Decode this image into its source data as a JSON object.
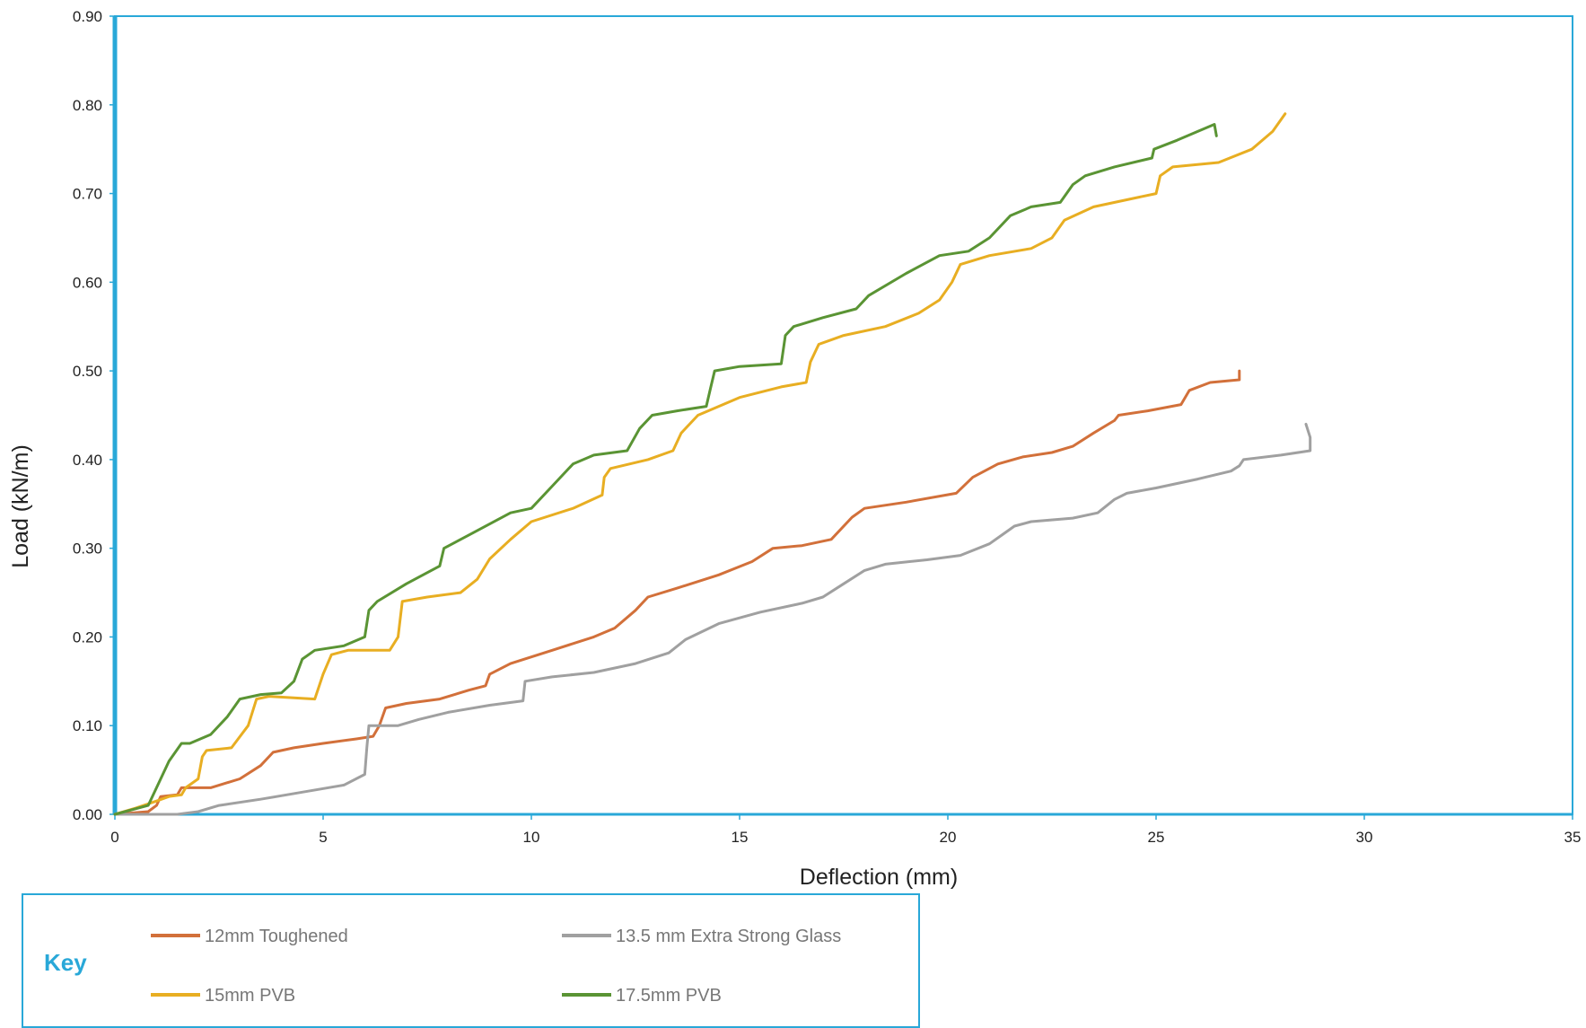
{
  "chart_data": {
    "type": "line",
    "title": "",
    "xlabel": "Deflection (mm)",
    "ylabel": "Load (kN/m)",
    "xlim": [
      0,
      35
    ],
    "ylim": [
      0,
      0.9
    ],
    "x_ticks": [
      0,
      5,
      10,
      15,
      20,
      25,
      30,
      35
    ],
    "y_ticks": [
      0.0,
      0.1,
      0.2,
      0.3,
      0.4,
      0.5,
      0.6,
      0.7,
      0.8,
      0.9
    ],
    "x_tick_labels": [
      "0",
      "5",
      "10",
      "15",
      "20",
      "25",
      "30",
      "35"
    ],
    "y_tick_labels": [
      "0.00",
      "0.10",
      "0.20",
      "0.30",
      "0.40",
      "0.50",
      "0.60",
      "0.70",
      "0.80",
      "0.90"
    ],
    "grid": false,
    "frame_color": "#29a8d8",
    "legend": {
      "title": "Key",
      "placement": "bottom-left",
      "title_color": "#29a8d8"
    },
    "series": [
      {
        "name": "12mm Toughened",
        "color": "#d2703a",
        "points": [
          [
            0,
            0
          ],
          [
            0.8,
            0.003
          ],
          [
            1.0,
            0.01
          ],
          [
            1.1,
            0.02
          ],
          [
            1.5,
            0.022
          ],
          [
            1.6,
            0.03
          ],
          [
            2.3,
            0.03
          ],
          [
            3.0,
            0.04
          ],
          [
            3.5,
            0.055
          ],
          [
            3.8,
            0.07
          ],
          [
            4.3,
            0.075
          ],
          [
            5.0,
            0.08
          ],
          [
            5.8,
            0.085
          ],
          [
            6.2,
            0.088
          ],
          [
            6.35,
            0.1
          ],
          [
            6.5,
            0.12
          ],
          [
            7.0,
            0.125
          ],
          [
            7.8,
            0.13
          ],
          [
            8.5,
            0.14
          ],
          [
            8.9,
            0.145
          ],
          [
            9.0,
            0.158
          ],
          [
            9.5,
            0.17
          ],
          [
            10.5,
            0.185
          ],
          [
            11.5,
            0.2
          ],
          [
            12.0,
            0.21
          ],
          [
            12.5,
            0.23
          ],
          [
            12.8,
            0.245
          ],
          [
            13.5,
            0.255
          ],
          [
            14.5,
            0.27
          ],
          [
            15.3,
            0.285
          ],
          [
            15.8,
            0.3
          ],
          [
            16.5,
            0.303
          ],
          [
            17.2,
            0.31
          ],
          [
            17.7,
            0.335
          ],
          [
            18.0,
            0.345
          ],
          [
            19.0,
            0.352
          ],
          [
            20.2,
            0.362
          ],
          [
            20.6,
            0.38
          ],
          [
            21.2,
            0.395
          ],
          [
            21.8,
            0.403
          ],
          [
            22.5,
            0.408
          ],
          [
            23.0,
            0.415
          ],
          [
            23.5,
            0.43
          ],
          [
            24.0,
            0.444
          ],
          [
            24.1,
            0.45
          ],
          [
            24.8,
            0.455
          ],
          [
            25.6,
            0.462
          ],
          [
            25.8,
            0.478
          ],
          [
            26.3,
            0.487
          ],
          [
            27.0,
            0.49
          ],
          [
            27.0,
            0.5
          ]
        ]
      },
      {
        "name": "13.5 mm Extra Strong Glass",
        "color": "#a0a0a0",
        "points": [
          [
            0,
            0
          ],
          [
            1.5,
            0.0
          ],
          [
            2.0,
            0.003
          ],
          [
            2.5,
            0.01
          ],
          [
            3.5,
            0.017
          ],
          [
            4.5,
            0.025
          ],
          [
            5.5,
            0.033
          ],
          [
            6.0,
            0.045
          ],
          [
            6.05,
            0.075
          ],
          [
            6.1,
            0.1
          ],
          [
            6.8,
            0.1
          ],
          [
            7.3,
            0.107
          ],
          [
            8.0,
            0.115
          ],
          [
            9.0,
            0.123
          ],
          [
            9.8,
            0.128
          ],
          [
            9.85,
            0.15
          ],
          [
            10.5,
            0.155
          ],
          [
            11.5,
            0.16
          ],
          [
            12.5,
            0.17
          ],
          [
            13.3,
            0.182
          ],
          [
            13.7,
            0.197
          ],
          [
            14.5,
            0.215
          ],
          [
            15.5,
            0.228
          ],
          [
            16.5,
            0.238
          ],
          [
            17.0,
            0.245
          ],
          [
            17.5,
            0.26
          ],
          [
            18.0,
            0.275
          ],
          [
            18.5,
            0.282
          ],
          [
            19.5,
            0.287
          ],
          [
            20.3,
            0.292
          ],
          [
            21.0,
            0.305
          ],
          [
            21.3,
            0.315
          ],
          [
            21.6,
            0.325
          ],
          [
            22.0,
            0.33
          ],
          [
            23.0,
            0.334
          ],
          [
            23.6,
            0.34
          ],
          [
            24.0,
            0.355
          ],
          [
            24.3,
            0.362
          ],
          [
            25.0,
            0.368
          ],
          [
            26.0,
            0.378
          ],
          [
            26.8,
            0.387
          ],
          [
            27.0,
            0.393
          ],
          [
            27.1,
            0.4
          ],
          [
            28.0,
            0.405
          ],
          [
            28.7,
            0.41
          ],
          [
            28.7,
            0.425
          ],
          [
            28.6,
            0.44
          ]
        ]
      },
      {
        "name": "15mm PVB",
        "color": "#e8ae22",
        "points": [
          [
            0,
            0
          ],
          [
            0.5,
            0.007
          ],
          [
            1.0,
            0.015
          ],
          [
            1.3,
            0.02
          ],
          [
            1.6,
            0.022
          ],
          [
            1.7,
            0.03
          ],
          [
            2.0,
            0.04
          ],
          [
            2.1,
            0.065
          ],
          [
            2.2,
            0.072
          ],
          [
            2.8,
            0.075
          ],
          [
            3.2,
            0.1
          ],
          [
            3.4,
            0.13
          ],
          [
            3.7,
            0.133
          ],
          [
            4.8,
            0.13
          ],
          [
            5.0,
            0.158
          ],
          [
            5.2,
            0.18
          ],
          [
            5.6,
            0.185
          ],
          [
            6.6,
            0.185
          ],
          [
            6.8,
            0.2
          ],
          [
            6.9,
            0.24
          ],
          [
            7.5,
            0.245
          ],
          [
            8.3,
            0.25
          ],
          [
            8.7,
            0.265
          ],
          [
            9.0,
            0.288
          ],
          [
            9.5,
            0.31
          ],
          [
            10.0,
            0.33
          ],
          [
            11.0,
            0.345
          ],
          [
            11.7,
            0.36
          ],
          [
            11.75,
            0.38
          ],
          [
            11.9,
            0.39
          ],
          [
            12.8,
            0.4
          ],
          [
            13.4,
            0.41
          ],
          [
            13.6,
            0.43
          ],
          [
            14.0,
            0.45
          ],
          [
            15.0,
            0.47
          ],
          [
            16.0,
            0.482
          ],
          [
            16.6,
            0.487
          ],
          [
            16.7,
            0.51
          ],
          [
            16.9,
            0.53
          ],
          [
            17.5,
            0.54
          ],
          [
            18.5,
            0.55
          ],
          [
            19.3,
            0.565
          ],
          [
            19.8,
            0.58
          ],
          [
            20.1,
            0.6
          ],
          [
            20.3,
            0.62
          ],
          [
            21.0,
            0.63
          ],
          [
            22.0,
            0.638
          ],
          [
            22.5,
            0.65
          ],
          [
            22.8,
            0.67
          ],
          [
            23.5,
            0.685
          ],
          [
            24.5,
            0.695
          ],
          [
            25.0,
            0.7
          ],
          [
            25.1,
            0.72
          ],
          [
            25.4,
            0.73
          ],
          [
            26.5,
            0.735
          ],
          [
            27.3,
            0.75
          ],
          [
            27.8,
            0.77
          ],
          [
            28.1,
            0.79
          ]
        ]
      },
      {
        "name": "17.5mm PVB",
        "color": "#5a9434",
        "points": [
          [
            0,
            0
          ],
          [
            0.8,
            0.01
          ],
          [
            1.0,
            0.03
          ],
          [
            1.3,
            0.06
          ],
          [
            1.6,
            0.08
          ],
          [
            1.8,
            0.08
          ],
          [
            2.3,
            0.09
          ],
          [
            2.7,
            0.11
          ],
          [
            3.0,
            0.13
          ],
          [
            3.5,
            0.135
          ],
          [
            4.0,
            0.137
          ],
          [
            4.3,
            0.15
          ],
          [
            4.5,
            0.175
          ],
          [
            4.8,
            0.185
          ],
          [
            5.5,
            0.19
          ],
          [
            6.0,
            0.2
          ],
          [
            6.1,
            0.23
          ],
          [
            6.3,
            0.24
          ],
          [
            7.0,
            0.26
          ],
          [
            7.8,
            0.28
          ],
          [
            7.9,
            0.3
          ],
          [
            8.5,
            0.315
          ],
          [
            9.5,
            0.34
          ],
          [
            10.0,
            0.345
          ],
          [
            10.5,
            0.37
          ],
          [
            11.0,
            0.395
          ],
          [
            11.5,
            0.405
          ],
          [
            12.3,
            0.41
          ],
          [
            12.6,
            0.435
          ],
          [
            12.9,
            0.45
          ],
          [
            13.5,
            0.455
          ],
          [
            14.2,
            0.46
          ],
          [
            14.3,
            0.48
          ],
          [
            14.4,
            0.5
          ],
          [
            15.0,
            0.505
          ],
          [
            16.0,
            0.508
          ],
          [
            16.1,
            0.54
          ],
          [
            16.3,
            0.55
          ],
          [
            17.0,
            0.56
          ],
          [
            17.8,
            0.57
          ],
          [
            18.1,
            0.585
          ],
          [
            19.0,
            0.61
          ],
          [
            19.8,
            0.63
          ],
          [
            20.5,
            0.635
          ],
          [
            21.0,
            0.65
          ],
          [
            21.5,
            0.675
          ],
          [
            22.0,
            0.685
          ],
          [
            22.7,
            0.69
          ],
          [
            23.0,
            0.71
          ],
          [
            23.3,
            0.72
          ],
          [
            24.0,
            0.73
          ],
          [
            24.9,
            0.74
          ],
          [
            24.95,
            0.75
          ],
          [
            25.5,
            0.76
          ],
          [
            26.0,
            0.77
          ],
          [
            26.4,
            0.778
          ],
          [
            26.45,
            0.765
          ]
        ]
      }
    ]
  }
}
